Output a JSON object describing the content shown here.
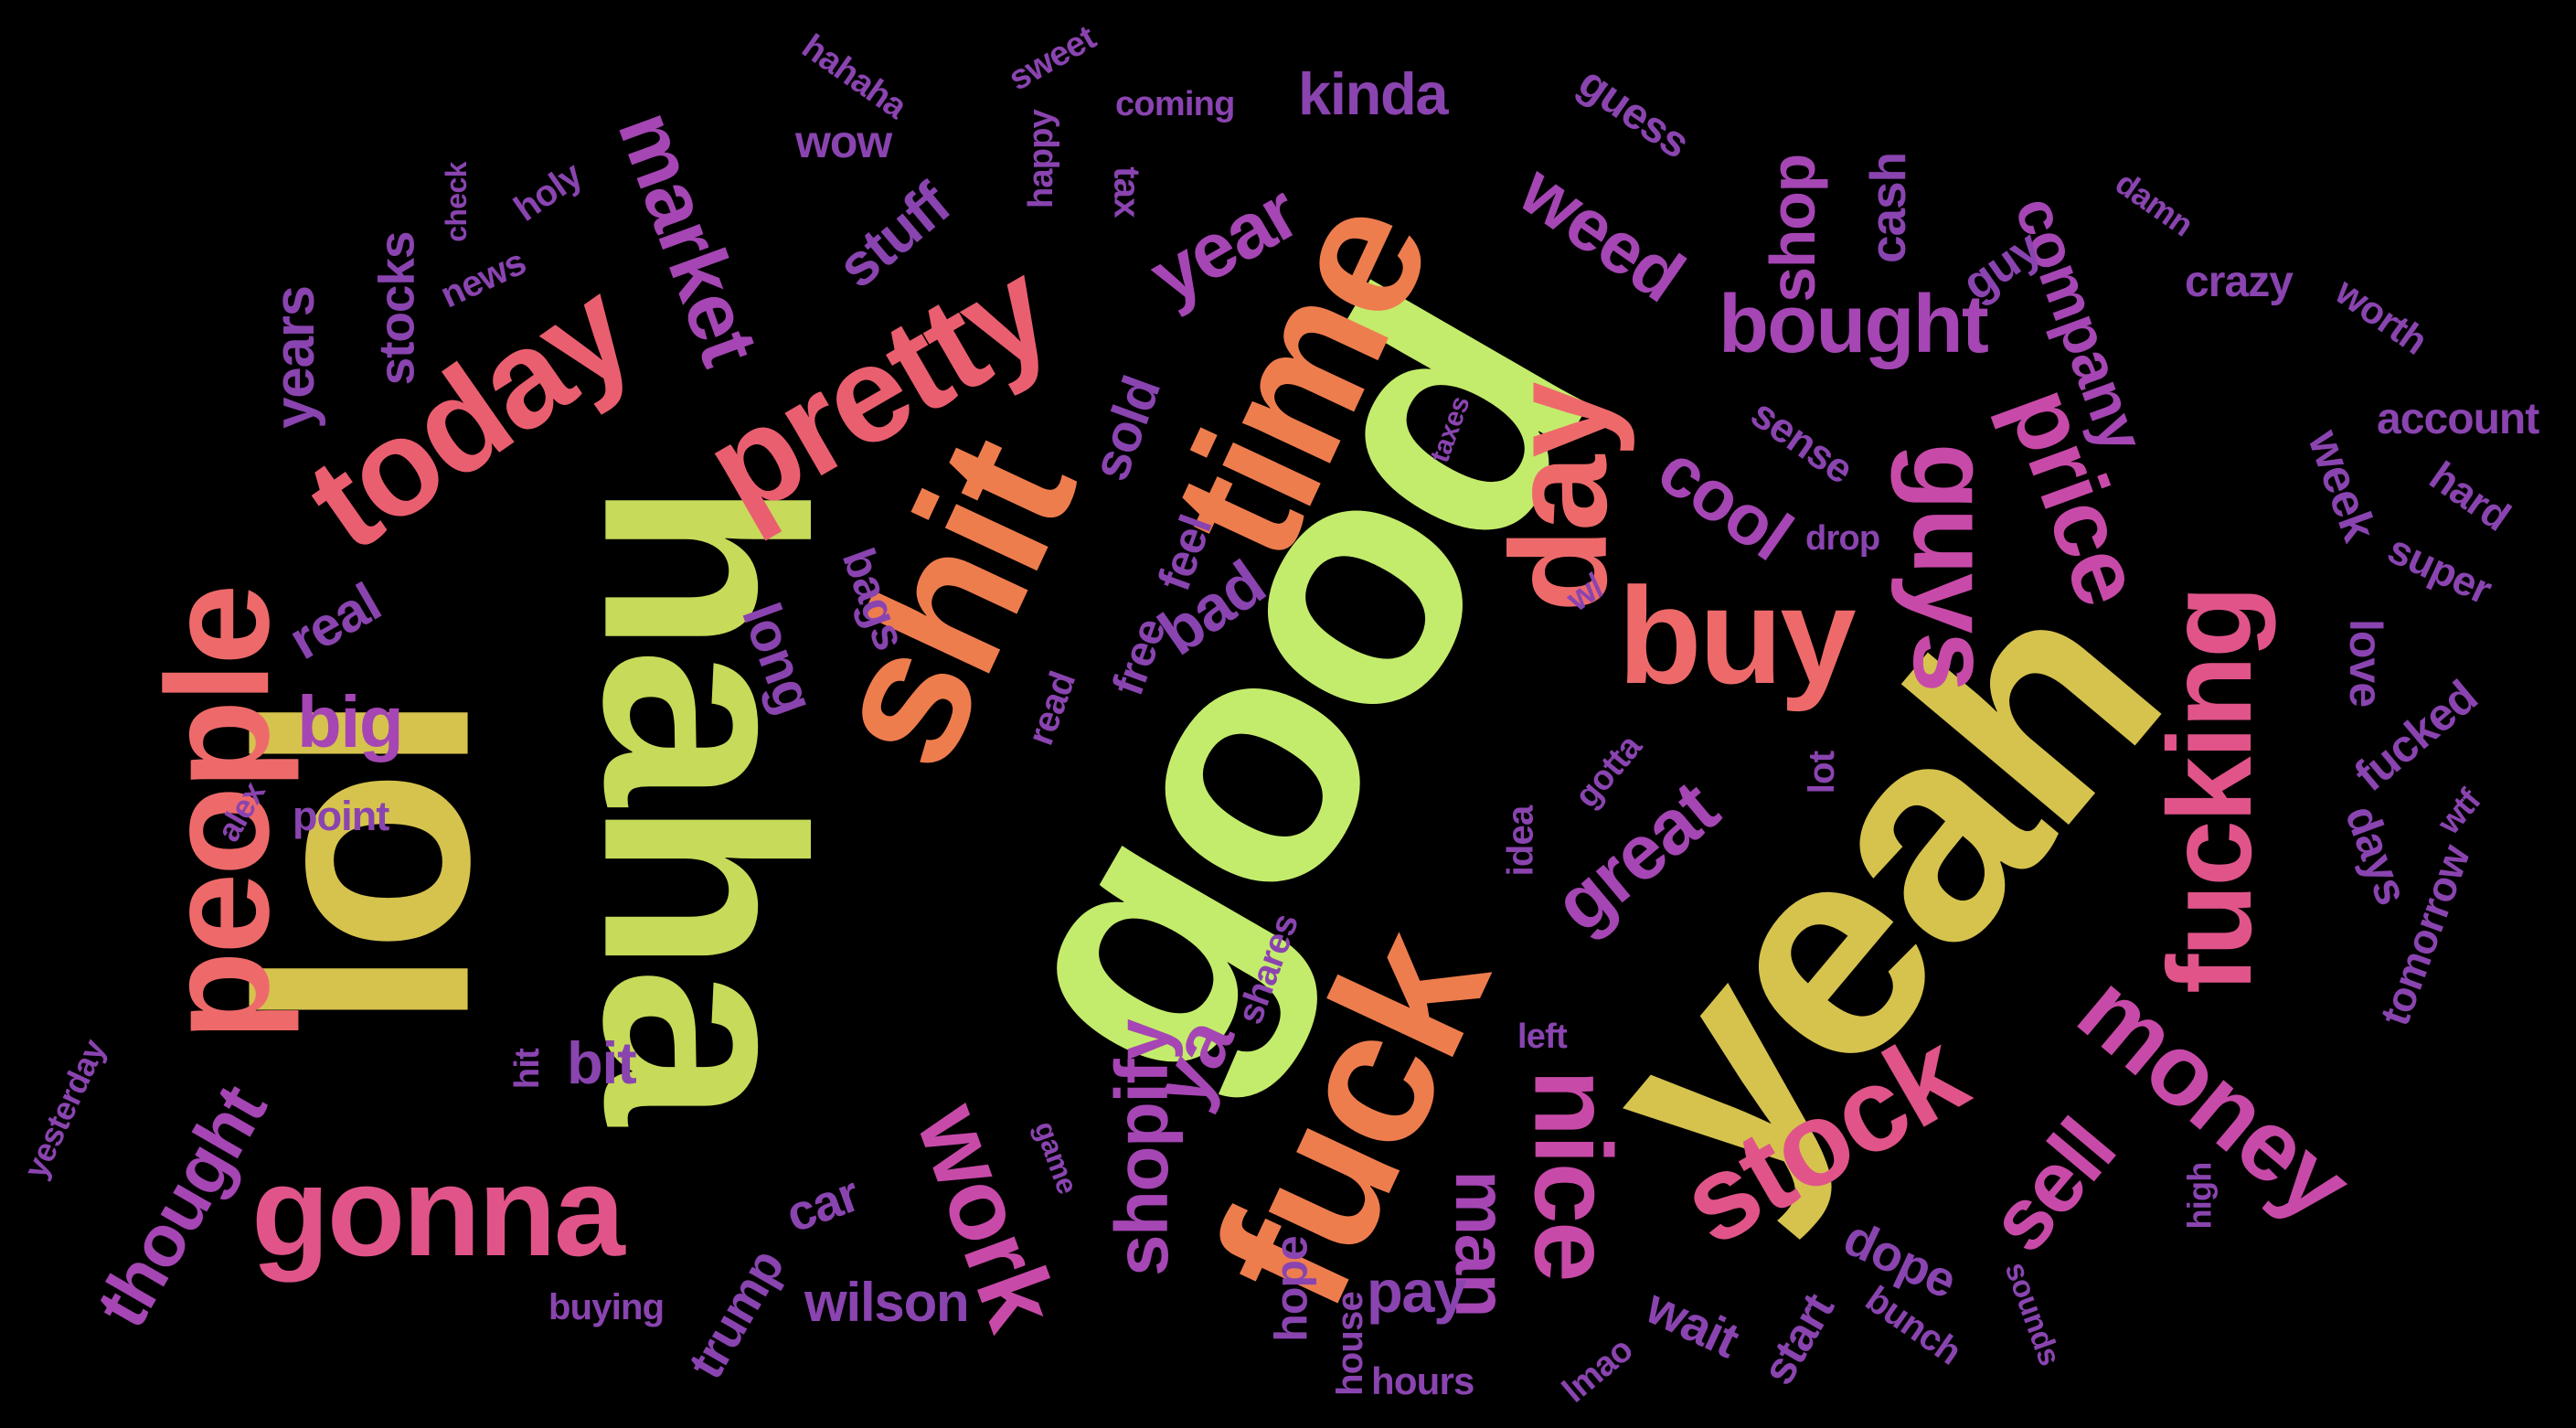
{
  "colors": {
    "background": "#000000",
    "yellow_green": "#c4ec6c",
    "olive": "#d6c34e",
    "orange": "#ee7d4e",
    "salmon": "#ee6a6a",
    "coral_pink": "#ea5f70",
    "pink": "#e0548a",
    "magenta": "#c84aa8",
    "purple": "#a546b4",
    "violet": "#8a44b0"
  },
  "words": [
    {
      "text": "good",
      "color": "#c4ec6c"
    },
    {
      "text": "lol",
      "color": "#d6c34e"
    },
    {
      "text": "haha",
      "color": "#c8da5a"
    },
    {
      "text": "yeah",
      "color": "#d6c34e"
    },
    {
      "text": "shit",
      "color": "#ee7d4e"
    },
    {
      "text": "time",
      "color": "#ee7d4e"
    },
    {
      "text": "fuck",
      "color": "#ee7d4e"
    },
    {
      "text": "people",
      "color": "#ee6a6a"
    },
    {
      "text": "today",
      "color": "#ea5f70"
    },
    {
      "text": "pretty",
      "color": "#ea5f70"
    },
    {
      "text": "buy",
      "color": "#ee6a6a"
    },
    {
      "text": "day",
      "color": "#ee6a6a"
    },
    {
      "text": "fucking",
      "color": "#e0548a"
    },
    {
      "text": "gonna",
      "color": "#e0548a"
    },
    {
      "text": "stock",
      "color": "#e0548a"
    },
    {
      "text": "money",
      "color": "#c84aa8"
    },
    {
      "text": "guys",
      "color": "#c84aa8"
    },
    {
      "text": "price",
      "color": "#c84aa8"
    },
    {
      "text": "nice",
      "color": "#c84aa8"
    },
    {
      "text": "work",
      "color": "#c84aa8"
    },
    {
      "text": "market",
      "color": "#a546b4"
    },
    {
      "text": "bought",
      "color": "#a546b4"
    },
    {
      "text": "sell",
      "color": "#c84aa8"
    },
    {
      "text": "shopify",
      "color": "#a546b4"
    },
    {
      "text": "year",
      "color": "#a546b4"
    },
    {
      "text": "weed",
      "color": "#a546b4"
    },
    {
      "text": "cool",
      "color": "#a546b4"
    },
    {
      "text": "great",
      "color": "#a546b4"
    },
    {
      "text": "thought",
      "color": "#a546b4"
    },
    {
      "text": "company",
      "color": "#a546b4"
    },
    {
      "text": "shop",
      "color": "#a546b4"
    },
    {
      "text": "man",
      "color": "#a546b4"
    },
    {
      "text": "kinda",
      "color": "#8a44b0"
    },
    {
      "text": "stuff",
      "color": "#8a44b0"
    },
    {
      "text": "big",
      "color": "#a546b4"
    },
    {
      "text": "ya",
      "color": "#a546b4"
    },
    {
      "text": "years",
      "color": "#8a44b0"
    },
    {
      "text": "stocks",
      "color": "#8a44b0"
    },
    {
      "text": "real",
      "color": "#8a44b0"
    },
    {
      "text": "long",
      "color": "#8a44b0"
    },
    {
      "text": "bad",
      "color": "#8a44b0"
    },
    {
      "text": "sold",
      "color": "#8a44b0"
    },
    {
      "text": "bags",
      "color": "#8a44b0"
    },
    {
      "text": "feel",
      "color": "#8a44b0"
    },
    {
      "text": "free",
      "color": "#8a44b0"
    },
    {
      "text": "bit",
      "color": "#8a44b0"
    },
    {
      "text": "car",
      "color": "#8a44b0"
    },
    {
      "text": "wilson",
      "color": "#8a44b0"
    },
    {
      "text": "trump",
      "color": "#8a44b0"
    },
    {
      "text": "pay",
      "color": "#8a44b0"
    },
    {
      "text": "wait",
      "color": "#8a44b0"
    },
    {
      "text": "start",
      "color": "#8a44b0"
    },
    {
      "text": "dope",
      "color": "#8a44b0"
    },
    {
      "text": "hope",
      "color": "#8a44b0"
    },
    {
      "text": "house",
      "color": "#8a44b0"
    },
    {
      "text": "hours",
      "color": "#8a44b0"
    },
    {
      "text": "cash",
      "color": "#8a44b0"
    },
    {
      "text": "guy",
      "color": "#8a44b0"
    },
    {
      "text": "sense",
      "color": "#8a44b0"
    },
    {
      "text": "week",
      "color": "#8a44b0"
    },
    {
      "text": "love",
      "color": "#8a44b0"
    },
    {
      "text": "fucked",
      "color": "#8a44b0"
    },
    {
      "text": "days",
      "color": "#8a44b0"
    },
    {
      "text": "tomorrow",
      "color": "#8a44b0"
    },
    {
      "text": "crazy",
      "color": "#8a44b0"
    },
    {
      "text": "worth",
      "color": "#8a44b0"
    },
    {
      "text": "account",
      "color": "#8a44b0"
    },
    {
      "text": "hard",
      "color": "#8a44b0"
    },
    {
      "text": "super",
      "color": "#8a44b0"
    },
    {
      "text": "guess",
      "color": "#8a44b0"
    },
    {
      "text": "wow",
      "color": "#8a44b0"
    },
    {
      "text": "hahaha",
      "color": "#8a44b0"
    },
    {
      "text": "sweet",
      "color": "#8a44b0"
    },
    {
      "text": "happy",
      "color": "#8a44b0"
    },
    {
      "text": "coming",
      "color": "#8a44b0"
    },
    {
      "text": "tax",
      "color": "#8a44b0"
    },
    {
      "text": "holy",
      "color": "#8a44b0"
    },
    {
      "text": "check",
      "color": "#8a44b0"
    },
    {
      "text": "news",
      "color": "#8a44b0"
    },
    {
      "text": "damn",
      "color": "#8a44b0"
    },
    {
      "text": "taxes",
      "color": "#8a44b0"
    },
    {
      "text": "drop",
      "color": "#8a44b0"
    },
    {
      "text": "w/",
      "color": "#8a44b0"
    },
    {
      "text": "read",
      "color": "#8a44b0"
    },
    {
      "text": "gotta",
      "color": "#8a44b0"
    },
    {
      "text": "lot",
      "color": "#8a44b0"
    },
    {
      "text": "idea",
      "color": "#8a44b0"
    },
    {
      "text": "shares",
      "color": "#8a44b0"
    },
    {
      "text": "left",
      "color": "#8a44b0"
    },
    {
      "text": "point",
      "color": "#8a44b0"
    },
    {
      "text": "alex",
      "color": "#8a44b0"
    },
    {
      "text": "hit",
      "color": "#8a44b0"
    },
    {
      "text": "yesterday",
      "color": "#8a44b0"
    },
    {
      "text": "buying",
      "color": "#8a44b0"
    },
    {
      "text": "game",
      "color": "#8a44b0"
    },
    {
      "text": "wtf",
      "color": "#8a44b0"
    },
    {
      "text": "high",
      "color": "#8a44b0"
    },
    {
      "text": "sounds",
      "color": "#8a44b0"
    },
    {
      "text": "bunch",
      "color": "#8a44b0"
    },
    {
      "text": "lmao",
      "color": "#8a44b0"
    }
  ]
}
